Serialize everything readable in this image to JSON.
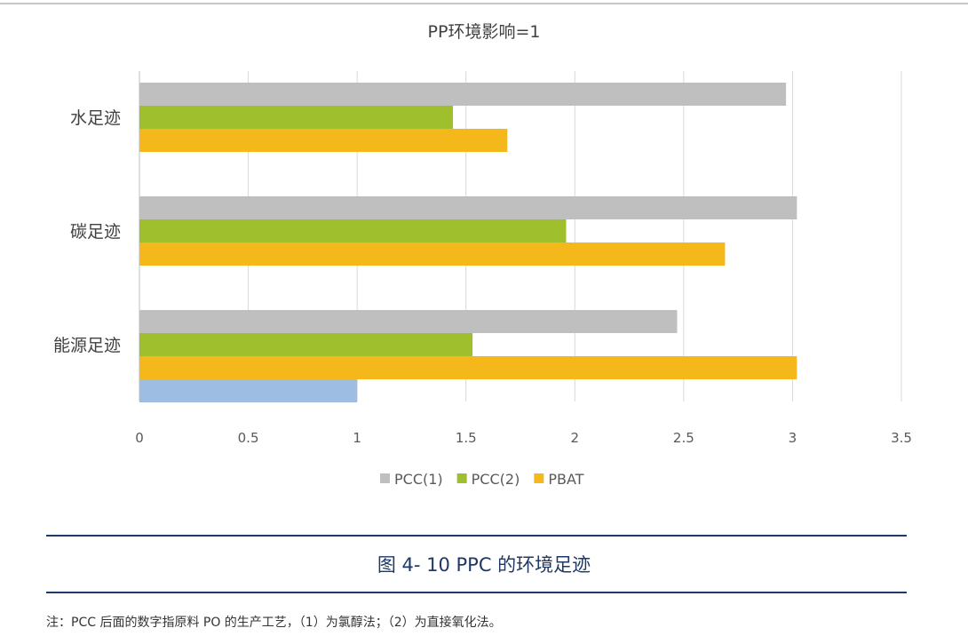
{
  "chart_data": {
    "type": "bar",
    "orientation": "horizontal",
    "title": "PP环境影响=1",
    "categories": [
      "水足迹",
      "碳足迹",
      "能源足迹"
    ],
    "series": [
      {
        "name": "PCC(1)",
        "color": "#bfbfbf",
        "values": [
          2.97,
          3.02,
          2.47
        ]
      },
      {
        "name": "PCC(2)",
        "color": "#a0bf2c",
        "values": [
          1.44,
          1.96,
          1.53
        ]
      },
      {
        "name": "PBAT",
        "color": "#f4b81a",
        "values": [
          1.69,
          2.69,
          3.02
        ]
      },
      {
        "color": "#9dbde3",
        "values": [
          null,
          null,
          1.0
        ]
      }
    ],
    "xlim": [
      0,
      3.5
    ],
    "xticks": [
      "0",
      "0.5",
      "1",
      "1.5",
      "2",
      "2.5",
      "3",
      "3.5"
    ],
    "grid": true,
    "legend": "bottom"
  },
  "caption": "图 4- 10 PPC 的环境足迹",
  "note": "注：PCC 后面的数字指原料 PO 的生产工艺，（1）为氯醇法；（2）为直接氧化法。"
}
